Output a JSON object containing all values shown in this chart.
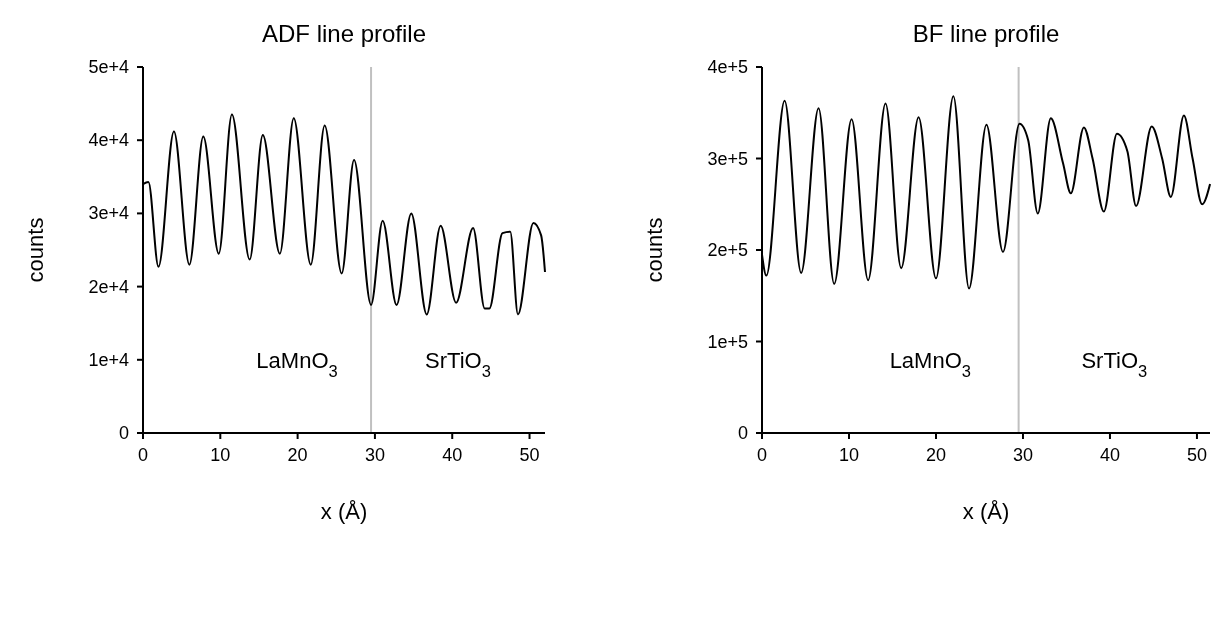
{
  "chart_data": [
    {
      "type": "line",
      "title": "ADF line profile",
      "xlabel": "x (Å)",
      "ylabel": "counts",
      "xlim": [
        0,
        52
      ],
      "xticks": [
        0,
        10,
        20,
        30,
        40,
        50
      ],
      "ylim": [
        0,
        50000
      ],
      "yticks": [
        {
          "value": 0,
          "label": "0"
        },
        {
          "value": 10000,
          "label": "1e+4"
        },
        {
          "value": 20000,
          "label": "2e+4"
        },
        {
          "value": 30000,
          "label": "3e+4"
        },
        {
          "value": 40000,
          "label": "4e+4"
        },
        {
          "value": 50000,
          "label": "5e+4"
        }
      ],
      "series": [
        {
          "color": "#000000",
          "x": [
            0,
            0.7,
            2,
            4,
            6,
            7.8,
            9.8,
            11.5,
            13.8,
            15.5,
            17.7,
            19.5,
            21.7,
            23.5,
            25.7,
            27.3,
            29.5,
            31,
            32.8,
            34.7,
            36.7,
            38.5,
            40.5,
            42.7,
            44.2,
            44.8,
            46.5,
            47.5,
            48.5,
            50.5,
            51.5,
            52
          ],
          "values": [
            34000,
            34300,
            22700,
            41200,
            23000,
            40500,
            24500,
            43500,
            23700,
            40700,
            24500,
            43000,
            23000,
            42000,
            21800,
            37300,
            17500,
            29000,
            17500,
            30000,
            16200,
            28300,
            17800,
            28000,
            17000,
            17000,
            27300,
            27500,
            16200,
            28700,
            27000,
            22000
          ]
        }
      ],
      "ref_lines": [
        {
          "axis": "x",
          "value": 29.5,
          "color": "#c0c0c0"
        }
      ],
      "annotations": [
        "LaMnO$_{3}$",
        "SrTiO$_{3}$"
      ]
    },
    {
      "type": "line",
      "title": "BF line profile",
      "xlabel": "x (Å)",
      "ylabel": "counts",
      "xlim": [
        0,
        51.5
      ],
      "xticks": [
        0,
        10,
        20,
        30,
        40,
        50
      ],
      "ylim": [
        0,
        400000
      ],
      "yticks": [
        {
          "value": 0,
          "label": "0"
        },
        {
          "value": 100000,
          "label": "1e+5"
        },
        {
          "value": 200000,
          "label": "2e+5"
        },
        {
          "value": 300000,
          "label": "3e+5"
        },
        {
          "value": 400000,
          "label": "4e+5"
        }
      ],
      "series": [
        {
          "color": "#000000",
          "x": [
            0,
            0.5,
            2.6,
            4.5,
            6.5,
            8.3,
            10.3,
            12.2,
            14.2,
            16,
            18,
            20,
            22,
            23.8,
            25.8,
            27.7,
            29.6,
            30.6,
            31.7,
            33.2,
            34.6,
            35.5,
            37,
            38,
            39.3,
            40.8,
            42,
            43,
            44.8,
            46,
            47,
            48.5,
            49.5,
            50.6,
            51.5
          ],
          "values": [
            195000,
            172000,
            363000,
            175000,
            355000,
            163000,
            343000,
            167000,
            360000,
            180000,
            345000,
            169000,
            368000,
            158000,
            337000,
            198000,
            338000,
            320000,
            240000,
            344000,
            295000,
            262000,
            334000,
            300000,
            242000,
            327000,
            308000,
            248000,
            335000,
            300000,
            258000,
            347000,
            300000,
            250000,
            272000
          ]
        }
      ],
      "ref_lines": [
        {
          "axis": "x",
          "value": 29.5,
          "color": "#c0c0c0"
        }
      ],
      "annotations": [
        "LaMnO$_{3}$",
        "SrTiO$_{3}$"
      ]
    }
  ]
}
